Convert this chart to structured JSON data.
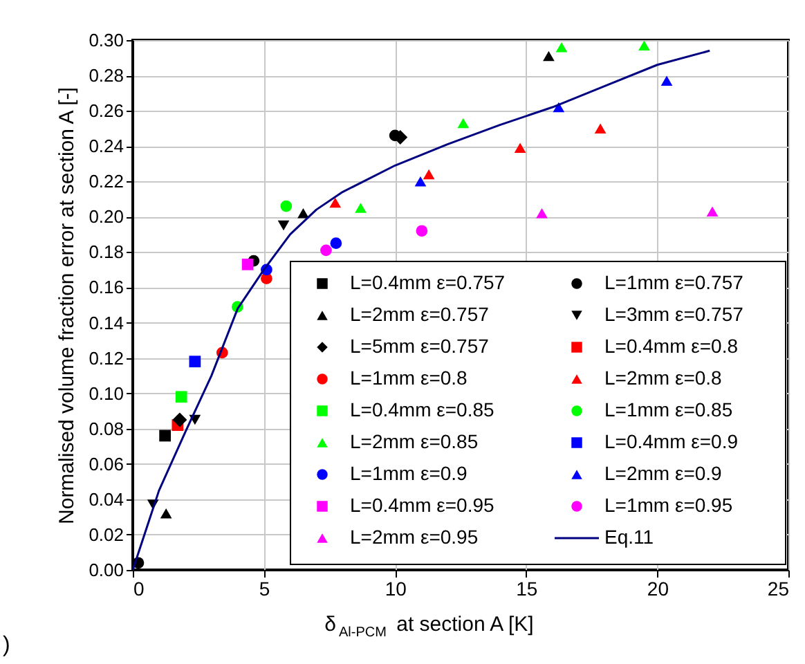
{
  "chart_data": {
    "type": "scatter",
    "xlabel": "δ$_{Al-PCM}$ at section A [K]",
    "ylabel": "Normalised volume fraction error at section A [-]",
    "xlim": [
      0,
      25
    ],
    "ylim": [
      0,
      0.3
    ],
    "xticks": [
      0,
      5,
      10,
      15,
      20,
      25
    ],
    "yticks": [
      {
        "value": 0,
        "label": "0.00"
      },
      {
        "value": 0.02,
        "label": "0.02"
      },
      {
        "value": 0.04,
        "label": "0.04"
      },
      {
        "value": 0.06,
        "label": "0.06"
      },
      {
        "value": 0.08,
        "label": "0.08"
      },
      {
        "value": 0.1,
        "label": "0.10"
      },
      {
        "value": 0.12,
        "label": "0.12"
      },
      {
        "value": 0.14,
        "label": "0.14"
      },
      {
        "value": 0.16,
        "label": "0.16"
      },
      {
        "value": 0.18,
        "label": "0.18"
      },
      {
        "value": 0.2,
        "label": "0.20"
      },
      {
        "value": 0.22,
        "label": "0.22"
      },
      {
        "value": 0.24,
        "label": "0.24"
      },
      {
        "value": 0.26,
        "label": "0.26"
      },
      {
        "value": 0.28,
        "label": "0.28"
      },
      {
        "value": 0.3,
        "label": "0.30"
      }
    ],
    "grid": true,
    "legend": "bottom right",
    "annotations": [
      ")"
    ],
    "series": [
      {
        "name": "L=0.4mm ε=0.757",
        "color": "#000000",
        "marker": "square",
        "x": [
          1.23
        ],
        "values": [
          0.076
        ]
      },
      {
        "name": "L=1mm ε=0.757",
        "color": "#000000",
        "marker": "circle",
        "x": [
          0.21,
          4.61,
          10.0
        ],
        "values": [
          0.004,
          0.175,
          0.246
        ]
      },
      {
        "name": "L=2mm ε=0.757",
        "color": "#000000",
        "marker": "triangle",
        "x": [
          1.27,
          6.5,
          15.86
        ],
        "values": [
          0.032,
          0.202,
          0.291
        ]
      },
      {
        "name": "L=3mm ε=0.757",
        "color": "#000000",
        "marker": "triangle-down",
        "x": [
          0.77,
          2.37,
          5.75
        ],
        "values": [
          0.037,
          0.085,
          0.195
        ]
      },
      {
        "name": "L=5mm ε=0.757",
        "color": "#000000",
        "marker": "diamond",
        "x": [
          1.79,
          10.2
        ],
        "values": [
          0.085,
          0.245
        ]
      },
      {
        "name": "L=0.4mm ε=0.8",
        "color": "#ff0000",
        "marker": "square",
        "x": [
          1.71
        ],
        "values": [
          0.082
        ]
      },
      {
        "name": "L=1mm ε=0.8",
        "color": "#ff0000",
        "marker": "circle",
        "x": [
          3.41,
          5.1
        ],
        "values": [
          0.123,
          0.165
        ]
      },
      {
        "name": "L=2mm ε=0.8",
        "color": "#ff0000",
        "marker": "triangle",
        "x": [
          7.72,
          11.29,
          14.77,
          17.83
        ],
        "values": [
          0.208,
          0.224,
          0.239,
          0.25
        ]
      },
      {
        "name": "L=0.4mm ε=0.85",
        "color": "#00ff00",
        "marker": "square",
        "x": [
          1.85
        ],
        "values": [
          0.098
        ]
      },
      {
        "name": "L=1mm ε=0.85",
        "color": "#00ff00",
        "marker": "circle",
        "x": [
          3.99,
          5.85
        ],
        "values": [
          0.149,
          0.206
        ]
      },
      {
        "name": "L=2mm ε=0.85",
        "color": "#00ff00",
        "marker": "triangle",
        "x": [
          8.69,
          12.6,
          16.35,
          19.5
        ],
        "values": [
          0.205,
          0.253,
          0.296,
          0.297
        ]
      },
      {
        "name": "L=0.4mm ε=0.9",
        "color": "#0000ff",
        "marker": "square",
        "x": [
          2.37
        ],
        "values": [
          0.118
        ]
      },
      {
        "name": "L=1mm ε=0.9",
        "color": "#0000ff",
        "marker": "circle",
        "x": [
          5.1,
          7.75
        ],
        "values": [
          0.17,
          0.185
        ]
      },
      {
        "name": "L=2mm ε=0.9",
        "color": "#0000ff",
        "marker": "triangle",
        "x": [
          10.97,
          16.24,
          20.36
        ],
        "values": [
          0.22,
          0.262,
          0.277
        ]
      },
      {
        "name": "L=0.4mm ε=0.95",
        "color": "#ff00ff",
        "marker": "square",
        "x": [
          4.38
        ],
        "values": [
          0.173
        ]
      },
      {
        "name": "L=1mm ε=0.95",
        "color": "#ff00ff",
        "marker": "circle",
        "x": [
          7.37,
          11.02
        ],
        "values": [
          0.181,
          0.192
        ]
      },
      {
        "name": "L=2mm ε=0.95",
        "color": "#ff00ff",
        "marker": "triangle",
        "x": [
          15.6,
          22.1
        ],
        "values": [
          0.202,
          0.203
        ]
      },
      {
        "name": "Eq.11",
        "type": "line",
        "color": "#000080",
        "marker": "none",
        "line_style": "solid",
        "x": [
          0,
          1,
          2,
          3,
          4,
          5,
          6,
          7,
          8,
          10,
          12,
          14,
          16,
          18,
          20,
          22
        ],
        "values": [
          0,
          0.045,
          0.078,
          0.11,
          0.148,
          0.17,
          0.19,
          0.204,
          0.214,
          0.229,
          0.241,
          0.252,
          0.262,
          0.274,
          0.286,
          0.294
        ]
      }
    ]
  }
}
